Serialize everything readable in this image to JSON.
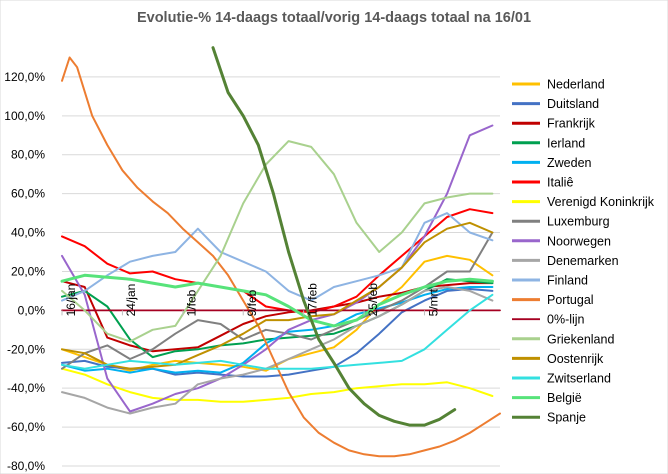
{
  "chart_data": {
    "type": "line",
    "title": "Evolutie-% 14-daags totaal/vorig  14-daags totaal na 16/01",
    "xlabel": "",
    "ylabel": "",
    "ylim": [
      -80,
      140
    ],
    "yticks": [
      -80,
      -60,
      -40,
      -20,
      0,
      20,
      40,
      60,
      80,
      100,
      120
    ],
    "ytick_labels": [
      "-80,0%",
      "-60,0%",
      "-40,0%",
      "-20,0%",
      "0,0%",
      "20,0%",
      "40,0%",
      "60,0%",
      "80,0%",
      "100,0%",
      "120,0%"
    ],
    "x_range": [
      0,
      58
    ],
    "x_tick_labels": [
      {
        "x": 0,
        "label": "16/jan"
      },
      {
        "x": 8,
        "label": "24/jan"
      },
      {
        "x": 16,
        "label": "1/feb"
      },
      {
        "x": 24,
        "label": "9/feb"
      },
      {
        "x": 32,
        "label": "17/feb"
      },
      {
        "x": 40,
        "label": "25/feb"
      },
      {
        "x": 48,
        "label": "5/mrt"
      }
    ],
    "grid": true,
    "legend_position": "right",
    "series": [
      {
        "name": "Nederland",
        "color": "#FFC000",
        "x": [
          0,
          3,
          6,
          9,
          12,
          15,
          18,
          21,
          24,
          27,
          30,
          33,
          36,
          39,
          42,
          45,
          48,
          51,
          54,
          57
        ],
        "y": [
          -20,
          -24,
          -28,
          -31,
          -28,
          -26,
          -27,
          -28,
          -29,
          -31,
          -25,
          -22,
          -19,
          -10,
          3,
          12,
          25,
          28,
          26,
          18
        ]
      },
      {
        "name": "Duitsland",
        "color": "#4472C4",
        "x": [
          0,
          3,
          6,
          9,
          12,
          15,
          18,
          21,
          24,
          27,
          30,
          33,
          36,
          39,
          42,
          45,
          48,
          51,
          54,
          57
        ],
        "y": [
          -27,
          -26,
          -29,
          -30,
          -30,
          -33,
          -32,
          -33,
          -34,
          -34,
          -33,
          -31,
          -29,
          -22,
          -12,
          -1,
          5,
          10,
          11,
          10
        ]
      },
      {
        "name": "Frankrijk",
        "color": "#C00000",
        "x": [
          0,
          3,
          6,
          9,
          12,
          15,
          18,
          21,
          24,
          27,
          30,
          33,
          36,
          39,
          42,
          45,
          48,
          51,
          54,
          57
        ],
        "y": [
          15,
          12,
          -14,
          -18,
          -21,
          -20,
          -19,
          -13,
          -7,
          -3,
          -1,
          0,
          2,
          4,
          7,
          9,
          12,
          13,
          14,
          14
        ]
      },
      {
        "name": "Ierland",
        "color": "#00A050",
        "x": [
          0,
          3,
          6,
          9,
          12,
          15,
          18,
          21,
          24,
          27,
          30,
          33,
          36,
          39,
          42,
          45,
          48,
          51,
          54,
          57
        ],
        "y": [
          7,
          10,
          2,
          -15,
          -24,
          -21,
          -20,
          -18,
          -17,
          -15,
          -14,
          -13,
          -12,
          -8,
          -3,
          3,
          10,
          16,
          15,
          14
        ]
      },
      {
        "name": "Zweden",
        "color": "#00B0F0",
        "x": [
          0,
          3,
          6,
          9,
          12,
          15,
          18,
          21,
          24,
          27,
          30,
          33,
          36,
          39,
          42,
          45,
          48,
          51,
          54,
          57
        ],
        "y": [
          -28,
          -31,
          -30,
          -32,
          -30,
          -32,
          -31,
          -32,
          -27,
          -17,
          -11,
          -10,
          -8,
          -2,
          1,
          4,
          8,
          11,
          12,
          12
        ]
      },
      {
        "name": "Italiê",
        "color": "#FF0000",
        "x": [
          0,
          3,
          6,
          9,
          12,
          15,
          18,
          21,
          24,
          27,
          30,
          33,
          36,
          39,
          42,
          45,
          48,
          51,
          54,
          57
        ],
        "y": [
          38,
          33,
          24,
          19,
          20,
          16,
          14,
          12,
          10,
          2,
          0,
          -1,
          2,
          7,
          18,
          28,
          38,
          48,
          52,
          50
        ]
      },
      {
        "name": "Verenigd Koninkrijk",
        "color": "#FFFF00",
        "x": [
          0,
          3,
          6,
          9,
          12,
          15,
          18,
          21,
          24,
          27,
          30,
          33,
          36,
          39,
          42,
          45,
          48,
          51,
          54,
          57
        ],
        "y": [
          -30,
          -33,
          -38,
          -42,
          -45,
          -46,
          -46,
          -47,
          -47,
          -46,
          -45,
          -43,
          -42,
          -40,
          -39,
          -38,
          -38,
          -37,
          -40,
          -44
        ]
      },
      {
        "name": "Luxemburg",
        "color": "#808080",
        "x": [
          0,
          3,
          6,
          9,
          12,
          15,
          18,
          21,
          24,
          27,
          30,
          33,
          36,
          39,
          42,
          45,
          48,
          51,
          54,
          57
        ],
        "y": [
          -30,
          -22,
          -18,
          -25,
          -20,
          -12,
          -5,
          -7,
          -15,
          -10,
          -12,
          -15,
          -10,
          -5,
          0,
          5,
          12,
          20,
          20,
          40
        ]
      },
      {
        "name": "Noorwegen",
        "color": "#9966CC",
        "x": [
          0,
          3,
          6,
          9,
          12,
          15,
          18,
          21,
          24,
          27,
          30,
          33,
          36,
          39,
          42,
          45,
          48,
          51,
          54,
          57
        ],
        "y": [
          28,
          8,
          -35,
          -52,
          -48,
          -43,
          -40,
          -35,
          -28,
          -20,
          -10,
          -5,
          -2,
          4,
          12,
          22,
          38,
          60,
          90,
          95
        ]
      },
      {
        "name": "Denemarken",
        "color": "#A6A6A6",
        "x": [
          0,
          3,
          6,
          9,
          12,
          15,
          18,
          21,
          24,
          27,
          30,
          33,
          36,
          39,
          42,
          45,
          48,
          51,
          54,
          57
        ],
        "y": [
          -42,
          -45,
          -50,
          -53,
          -50,
          -48,
          -38,
          -35,
          -33,
          -30,
          -25,
          -20,
          -15,
          -8,
          -3,
          3,
          10,
          12,
          10,
          5
        ]
      },
      {
        "name": "Finland",
        "color": "#8EB4E3",
        "x": [
          0,
          3,
          6,
          9,
          12,
          15,
          18,
          21,
          24,
          27,
          30,
          33,
          36,
          39,
          42,
          45,
          48,
          51,
          54,
          57
        ],
        "y": [
          5,
          10,
          18,
          25,
          28,
          30,
          42,
          30,
          25,
          20,
          10,
          5,
          12,
          15,
          18,
          22,
          45,
          50,
          40,
          36
        ]
      },
      {
        "name": "Portugal",
        "color": "#ED7D31",
        "x": [
          0,
          1,
          2,
          4,
          6,
          8,
          10,
          12,
          14,
          16,
          18,
          20,
          22,
          24,
          26,
          28,
          30,
          32,
          34,
          36,
          38,
          40,
          42,
          44,
          46,
          48,
          50,
          52,
          54,
          56,
          58
        ],
        "y": [
          118,
          130,
          125,
          100,
          85,
          72,
          63,
          56,
          50,
          42,
          35,
          28,
          18,
          5,
          -8,
          -25,
          -42,
          -55,
          -63,
          -68,
          -72,
          -74,
          -75,
          -75,
          -74,
          -72,
          -70,
          -67,
          -63,
          -58,
          -53
        ]
      },
      {
        "name": "0%-lijn",
        "color": "#A50021",
        "x": [
          0,
          58
        ],
        "y": [
          0,
          0
        ]
      },
      {
        "name": "Griekenland",
        "color": "#A9D18E",
        "x": [
          0,
          3,
          6,
          9,
          12,
          15,
          18,
          21,
          24,
          27,
          30,
          33,
          36,
          39,
          42,
          45,
          48,
          51,
          54,
          57
        ],
        "y": [
          10,
          0,
          -12,
          -16,
          -10,
          -8,
          10,
          28,
          55,
          75,
          87,
          84,
          70,
          45,
          30,
          40,
          55,
          58,
          60,
          60
        ]
      },
      {
        "name": "Oostenrijk",
        "color": "#BF9000",
        "x": [
          0,
          3,
          6,
          9,
          12,
          15,
          18,
          21,
          24,
          27,
          30,
          33,
          36,
          39,
          42,
          45,
          48,
          51,
          54,
          57
        ],
        "y": [
          -20,
          -22,
          -28,
          -30,
          -29,
          -28,
          -23,
          -18,
          -12,
          -5,
          -5,
          -3,
          -2,
          5,
          12,
          22,
          35,
          42,
          45,
          40
        ]
      },
      {
        "name": "Zwitserland",
        "color": "#33E0E0",
        "x": [
          0,
          3,
          6,
          9,
          12,
          15,
          18,
          21,
          24,
          27,
          30,
          33,
          36,
          39,
          42,
          45,
          48,
          51,
          54,
          57
        ],
        "y": [
          -28,
          -30,
          -28,
          -26,
          -27,
          -28,
          -27,
          -26,
          -28,
          -30,
          -30,
          -30,
          -29,
          -28,
          -27,
          -26,
          -20,
          -10,
          0,
          8
        ]
      },
      {
        "name": "België",
        "color": "#57E37A",
        "x": [
          0,
          3,
          6,
          9,
          12,
          15,
          18,
          21,
          24,
          27,
          30,
          33,
          36,
          39,
          42,
          45,
          48,
          51,
          54,
          57
        ],
        "y": [
          15,
          18,
          17,
          16,
          14,
          12,
          14,
          12,
          10,
          8,
          2,
          -5,
          -8,
          -5,
          3,
          8,
          12,
          15,
          16,
          15
        ]
      },
      {
        "name": "Spanje",
        "color": "#548235",
        "x": [
          20,
          22,
          24,
          26,
          28,
          30,
          32,
          34,
          36,
          38,
          40,
          42,
          44,
          46,
          48,
          50,
          52
        ],
        "y": [
          135,
          112,
          100,
          85,
          60,
          30,
          5,
          -15,
          -27,
          -40,
          -48,
          -54,
          -57,
          -59,
          -59,
          -56,
          -51
        ]
      }
    ]
  }
}
